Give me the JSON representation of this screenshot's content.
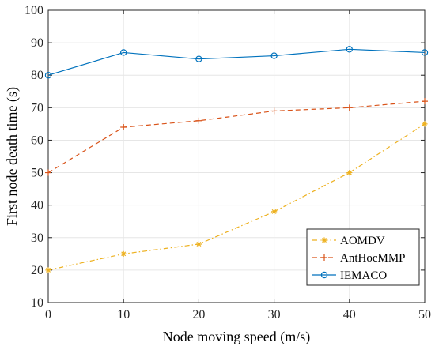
{
  "chart_data": {
    "type": "line",
    "title": "",
    "xlabel": "Node moving speed (m/s)",
    "ylabel": "First node death time (s)",
    "x": [
      0,
      10,
      20,
      30,
      40,
      50
    ],
    "xlim": [
      0,
      50
    ],
    "ylim": [
      10,
      100
    ],
    "xticks": [
      0,
      10,
      20,
      30,
      40,
      50
    ],
    "yticks": [
      10,
      20,
      30,
      40,
      50,
      60,
      70,
      80,
      90,
      100
    ],
    "grid": true,
    "legend_position": "bottom-right",
    "series": [
      {
        "name": "AOMDV",
        "values": [
          20,
          25,
          28,
          38,
          50,
          65
        ],
        "color": "#EDB120",
        "line_style": "dash-dot",
        "marker": "asterisk"
      },
      {
        "name": "AntHocMMP",
        "values": [
          50,
          64,
          66,
          69,
          70,
          72
        ],
        "color": "#D95319",
        "line_style": "dashed",
        "marker": "plus"
      },
      {
        "name": "IEMACO",
        "values": [
          80,
          87,
          85,
          86,
          88,
          87
        ],
        "color": "#0072BD",
        "line_style": "solid",
        "marker": "circle"
      }
    ]
  }
}
